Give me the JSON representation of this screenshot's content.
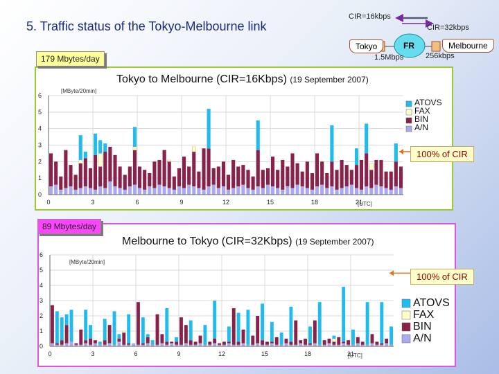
{
  "header": {
    "title": "5.  Traffic status of the Tokyo-Melbourne link"
  },
  "network": {
    "cir_top": "CIR=16kbps",
    "cir_right": "CIR=32kbps",
    "tokyo": "Tokyo",
    "fr": "FR",
    "melbourne": "Melbourne",
    "speed_left": "1.5Mbps",
    "speed_right": "256kbps"
  },
  "volumes": {
    "top": "179 Mbytes/day",
    "bottom": "89 Mbytes/day"
  },
  "annotations": {
    "cir_label": "100% of CIR"
  },
  "colors": {
    "atovs": "#22bbee",
    "fax": "#ffffcc",
    "bin": "#88224a",
    "an": "#aaa8ee"
  },
  "chart_data": [
    {
      "type": "bar",
      "stacked": true,
      "title": "Tokyo to Melbourne (CIR=16Kbps)",
      "subtitle": "(19 September 2007)",
      "ylabel": "[MByte/20min]",
      "xlabel": "[UTC]",
      "ylim": [
        0,
        6
      ],
      "yticks": [
        "0",
        "1",
        "2",
        "3",
        "4",
        "5",
        "6"
      ],
      "xticks": [
        {
          "value": 0,
          "label": "0"
        },
        {
          "value": 3,
          "label": "3"
        },
        {
          "value": 6,
          "label": "6"
        },
        {
          "value": 9,
          "label": "9"
        },
        {
          "value": 12,
          "label": "12"
        },
        {
          "value": 15,
          "label": "15"
        },
        {
          "value": 18,
          "label": "18"
        },
        {
          "value": 21,
          "label": "21"
        }
      ],
      "cir_line": 2.6,
      "legend": "right",
      "series": [
        {
          "name": "A/N",
          "color": "#aaa8ee",
          "values": [
            0.5,
            0.6,
            0.3,
            0.4,
            0.5,
            0.3,
            0.4,
            0.5,
            0.4,
            0.3,
            0.5,
            0.4,
            0.8,
            0.5,
            0.4,
            0.3,
            0.5,
            0.6,
            0.4,
            0.3,
            0.5,
            0.4,
            0.6,
            0.5,
            0.4,
            0.3,
            0.5,
            0.4,
            0.6,
            0.5,
            0.4,
            0.3,
            0.5,
            0.6,
            0.4,
            0.5,
            0.3,
            0.4,
            0.5,
            0.6,
            0.4,
            0.3,
            0.5,
            0.4,
            0.6,
            0.5,
            0.4,
            0.3,
            0.5,
            0.4,
            0.6,
            0.5,
            0.4,
            0.3,
            0.5,
            0.6,
            0.4,
            0.5,
            0.3,
            0.4,
            0.5,
            0.6,
            0.4,
            0.3,
            0.5,
            0.4,
            0.6,
            0.5,
            0.4,
            0.3,
            0.5,
            0.4
          ]
        },
        {
          "name": "BIN",
          "color": "#88224a",
          "values": [
            2.0,
            1.4,
            0.8,
            2.3,
            1.3,
            0.9,
            1.5,
            1.7,
            1.2,
            2.1,
            1.2,
            2.2,
            2.1,
            1.9,
            1.3,
            0.9,
            1.2,
            2.1,
            1.3,
            1.2,
            0.8,
            1.6,
            1.5,
            2.2,
            1.6,
            0.8,
            1.1,
            1.9,
            1.1,
            2.1,
            1.0,
            2.5,
            2.3,
            1.0,
            1.3,
            1.5,
            0.9,
            1.7,
            1.2,
            1.2,
            1.1,
            0.8,
            2.2,
            1.1,
            1.0,
            1.8,
            1.1,
            1.8,
            1.2,
            2.1,
            1.3,
            0.9,
            1.6,
            1.0,
            2.0,
            1.4,
            0.9,
            1.5,
            1.2,
            1.7,
            1.3,
            0.9,
            1.4,
            1.8,
            2.0,
            1.1,
            1.5,
            1.6,
            1.0,
            1.1,
            1.5,
            1.3
          ]
        },
        {
          "name": "FAX",
          "color": "#ffffcc",
          "values": [
            0,
            0,
            0,
            0,
            0,
            0,
            0.2,
            0,
            0,
            0,
            0.8,
            0,
            0,
            0,
            0,
            0,
            0,
            0.2,
            0,
            0,
            0,
            0,
            0,
            0,
            0.1,
            0,
            0,
            0,
            0,
            0.3,
            0,
            0,
            0,
            0,
            0,
            0,
            0,
            0,
            0,
            0,
            0,
            0,
            0,
            0,
            0,
            0,
            0,
            0,
            0,
            0,
            0,
            0,
            0,
            0,
            0,
            0,
            0,
            0,
            0,
            0,
            0,
            0,
            0,
            0,
            0,
            0.4,
            0,
            0,
            0,
            0,
            0,
            0
          ]
        },
        {
          "name": "ATOVS",
          "color": "#22bbee",
          "values": [
            0,
            0,
            0,
            0,
            0,
            0,
            1.5,
            0.4,
            0,
            1.3,
            0.8,
            0.5,
            0,
            0,
            0,
            0,
            0,
            1.2,
            0,
            0,
            0,
            0,
            0,
            0,
            0,
            0,
            0,
            0,
            0,
            0,
            0,
            0,
            2.4,
            0,
            0,
            0,
            0,
            0,
            0,
            0,
            0,
            0,
            1.8,
            0,
            0,
            0,
            0,
            0,
            0,
            0,
            0,
            0,
            0,
            0,
            0,
            0,
            0,
            2.2,
            0,
            0,
            0,
            0,
            1.0,
            0,
            1.8,
            0,
            0,
            0,
            0,
            0,
            1.1,
            0
          ]
        }
      ]
    },
    {
      "type": "bar",
      "stacked": true,
      "title": "Melbourne to Tokyo (CIR=32Kbps)",
      "subtitle": "(19 September 2007)",
      "ylabel": "[MByte/20min]",
      "xlabel": "[UTC]",
      "ylim": [
        0,
        6
      ],
      "yticks": [
        "0",
        "1",
        "2",
        "3",
        "4",
        "5",
        "6"
      ],
      "xticks": [
        {
          "value": 0,
          "label": "0"
        },
        {
          "value": 3,
          "label": "3"
        },
        {
          "value": 6,
          "label": "6"
        },
        {
          "value": 9,
          "label": "9"
        },
        {
          "value": 12,
          "label": "12"
        },
        {
          "value": 15,
          "label": "15"
        },
        {
          "value": 18,
          "label": "18"
        },
        {
          "value": 21,
          "label": "21"
        }
      ],
      "cir_line": 4.8,
      "legend": "right",
      "series": [
        {
          "name": "A/N",
          "color": "#aaa8ee",
          "values": [
            0.2,
            0.1,
            0.1,
            0.2,
            0.3,
            0.1,
            0.1,
            0.2,
            0.1,
            0.2,
            0.1,
            0.1,
            0.2,
            0.1,
            0.3,
            0.1,
            0.1,
            0.2,
            0.1,
            0.1,
            0.2,
            0.1,
            0.1,
            0.2,
            0.1,
            0.2,
            0.1,
            0.1,
            0.2,
            0.1,
            0.1,
            0.2,
            0.1,
            0.1,
            0.2,
            0.1,
            0.1,
            0.2,
            0.1,
            0.1,
            0.2,
            0.1,
            0.1,
            0.2,
            0.1,
            0.1,
            0.2,
            0.1,
            0.1,
            0.2,
            0.1,
            0.1,
            0.2,
            0.1,
            0.1,
            0.2,
            0.1,
            0.1,
            0.2,
            0.1,
            0.1,
            0.2,
            0.1,
            0.1,
            0.2,
            0.1,
            0.1,
            0.2,
            0.1,
            0.1,
            0.2,
            0.1
          ]
        },
        {
          "name": "BIN",
          "color": "#88224a",
          "values": [
            2.5,
            0.1,
            0.3,
            1.2,
            0,
            0.1,
            1.0,
            0.2,
            0.4,
            0.2,
            0,
            0.3,
            1.2,
            0,
            0.2,
            0.8,
            0.1,
            0,
            2.8,
            0.1,
            0.4,
            0,
            2.0,
            0.6,
            0.2,
            0.1,
            0.2,
            1.8,
            1.2,
            0.3,
            0.2,
            0.5,
            0,
            0.2,
            0.3,
            0.1,
            0.2,
            0.1,
            2.4,
            0.2,
            0.9,
            0,
            0.6,
            1.8,
            0.3,
            0.2,
            0.1,
            0.5,
            0,
            0.3,
            0.2,
            1.6,
            0.2,
            0.4,
            0.1,
            1.5,
            0,
            0.3,
            0.3,
            0.2,
            0.5,
            0.1,
            0.3,
            0,
            0.4,
            0.2,
            0,
            0.6,
            0.2,
            0.1,
            0.3,
            0
          ]
        },
        {
          "name": "FAX",
          "color": "#ffffcc",
          "values": [
            0,
            0,
            0,
            0,
            0,
            0,
            0,
            0,
            0,
            0,
            0,
            0,
            0,
            0,
            0,
            0.1,
            0,
            0,
            0,
            0,
            0,
            0,
            0,
            0,
            0,
            0,
            0,
            0,
            0,
            0,
            0,
            0,
            0,
            0,
            0,
            0,
            0,
            0,
            0,
            0,
            0,
            0,
            0,
            0,
            0,
            0,
            0,
            0,
            0,
            0,
            0,
            0,
            0,
            0,
            0,
            0,
            0,
            0,
            0,
            0.2,
            0,
            0,
            0,
            0,
            0,
            0,
            0,
            0,
            0,
            0,
            0,
            0
          ]
        },
        {
          "name": "ATOVS",
          "color": "#22bbee",
          "values": [
            0,
            2.1,
            1.5,
            0.7,
            2.1,
            0,
            0,
            2.0,
            0.9,
            0,
            0.2,
            1.4,
            0,
            2.2,
            0.3,
            0,
            1.9,
            0,
            0,
            1.7,
            0.2,
            0.3,
            0,
            0,
            2.2,
            0,
            0.3,
            0,
            0,
            1.3,
            0,
            0,
            1.3,
            0,
            2.5,
            0,
            0,
            1.0,
            0,
            1.9,
            0,
            2.3,
            0,
            0,
            2.4,
            0,
            1.3,
            0,
            0.8,
            0,
            2.3,
            0,
            0,
            0,
            1.1,
            0,
            2.8,
            0,
            0,
            0.2,
            0,
            3.6,
            0,
            1.0,
            0,
            0,
            2.8,
            0,
            0,
            2.7,
            0,
            1.2
          ]
        }
      ]
    }
  ]
}
